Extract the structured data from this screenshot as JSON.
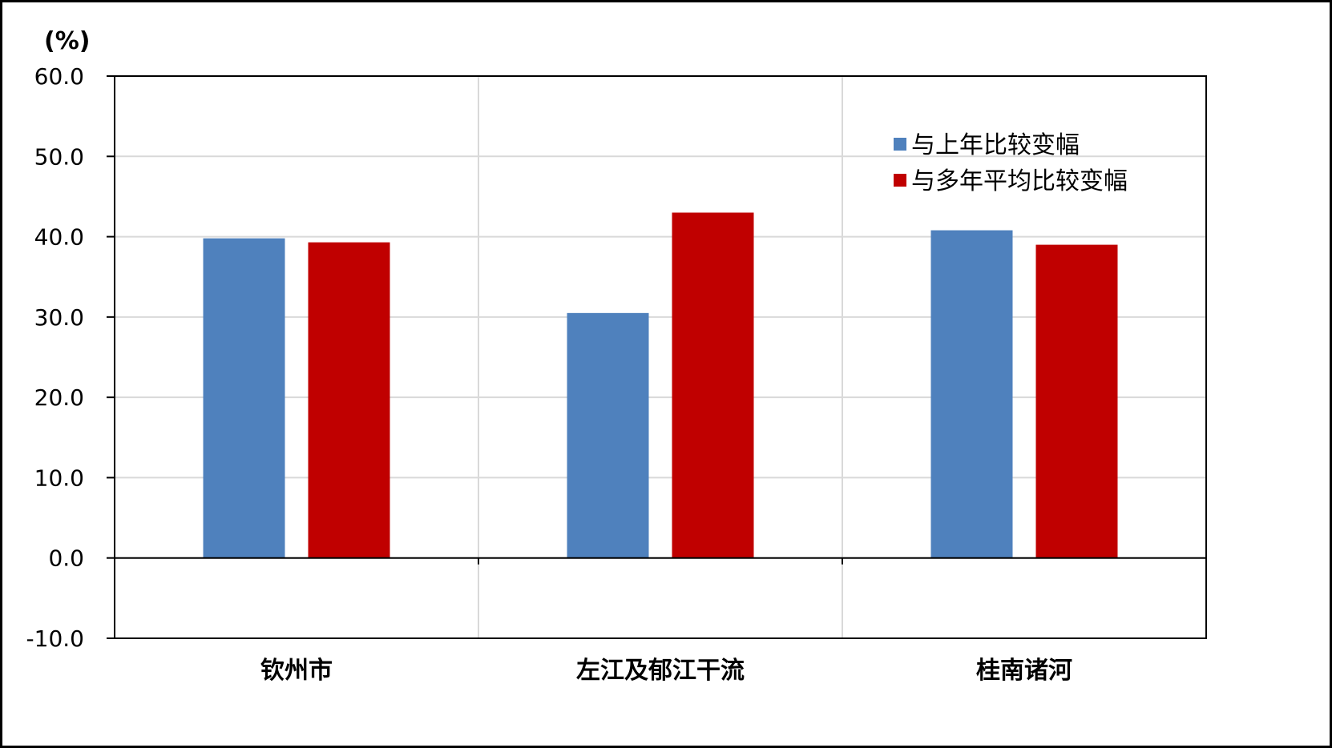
{
  "chart_data": {
    "type": "bar",
    "unit_label": "(%)",
    "categories": [
      "钦州市",
      "左江及郁江干流",
      "桂南诸河"
    ],
    "series": [
      {
        "name": "与上年比较变幅",
        "values": [
          39.8,
          30.5,
          40.8
        ],
        "color": "#4f81bd"
      },
      {
        "name": "与多年平均比较变幅",
        "values": [
          39.3,
          43.0,
          39.0
        ],
        "color": "#c00000"
      }
    ],
    "ylim": [
      -10,
      60
    ],
    "yticks": [
      -10,
      0,
      10,
      20,
      30,
      40,
      50,
      60
    ],
    "ytick_labels": [
      "-10.0",
      "0.0",
      "10.0",
      "20.0",
      "30.0",
      "40.0",
      "50.0",
      "60.0"
    ],
    "grid": true,
    "legend_position": "top-right"
  }
}
